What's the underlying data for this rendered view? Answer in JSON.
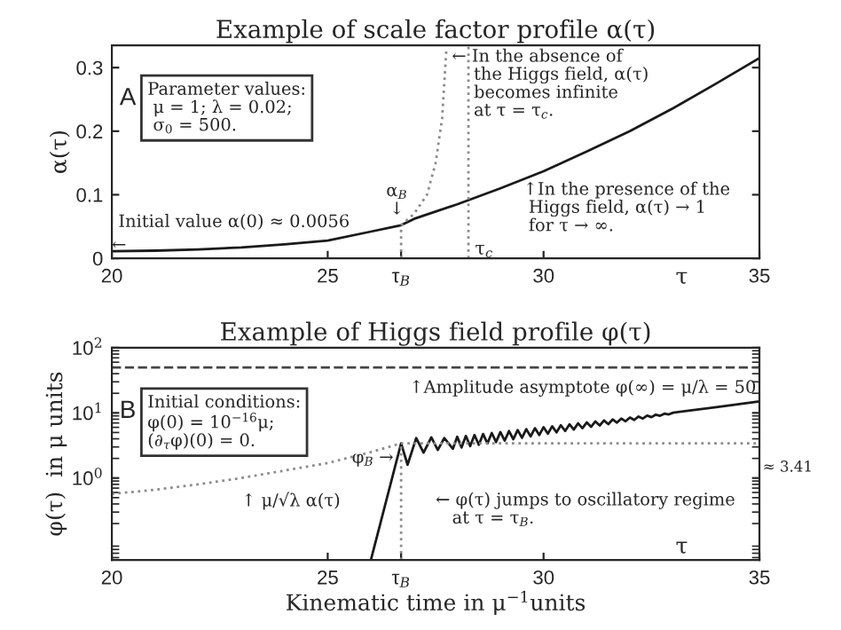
{
  "chart_data": [
    {
      "type": "line",
      "title": "Example of scale factor profile α(τ)",
      "ylabel": "α(τ)",
      "xlim": [
        20,
        35
      ],
      "xticks": [
        20,
        25,
        {
          "value": 26.7,
          "label": "τ$_{B}$"
        },
        30,
        35
      ],
      "ylim": [
        0,
        0.335
      ],
      "yticks": [
        0,
        0.1,
        0.2,
        0.3
      ],
      "grid": false,
      "legend": false,
      "series": [
        {
          "color": "#1a1a1a",
          "line_style": "solid",
          "x": [
            20,
            21,
            22,
            23,
            24,
            25,
            26,
            26.7,
            27,
            28,
            29,
            30,
            31,
            32,
            33,
            34,
            35
          ],
          "values": [
            0.011,
            0.012,
            0.014,
            0.017,
            0.022,
            0.028,
            0.042,
            0.052,
            0.062,
            0.085,
            0.11,
            0.137,
            0.168,
            0.2,
            0.236,
            0.275,
            0.315
          ]
        },
        {
          "color": "#8c8c8c",
          "line_style": "dotted",
          "x": [
            26.7,
            27.0,
            27.3,
            27.5,
            27.65,
            27.75
          ],
          "values": [
            0.052,
            0.07,
            0.1,
            0.15,
            0.22,
            0.33
          ]
        },
        {
          "color": "#8c8c8c",
          "line_style": "dotted",
          "x": [
            26.7,
            26.7
          ],
          "values": [
            0,
            0.052
          ]
        }
      ],
      "ref_lines": [
        {
          "axis": "x",
          "value": 28.26,
          "label": "τ$_{c}$",
          "color": "#8c8c8c",
          "line_style": "dotted"
        }
      ],
      "annotations": [
        "A",
        "Parameter values:\n μ = 1; λ = 0.02;\n σ$_{0}$ = 500.",
        "← In the absence of\n    the Higgs field, α(τ)\n    becomes infinite\n    at τ = τ$_{c}$.",
        "↑In the presence of the\n Higgs field, α(τ) → 1\n for τ → ∞.",
        "Initial value α(0) ≈ 0.0056",
        "←",
        "α$_{B}$\n↓",
        "τ"
      ]
    },
    {
      "type": "line",
      "title": "Example of Higgs field profile φ(τ)",
      "ylabel": "φ(τ)  in μ units",
      "xlabel": "Kinematic time in μ$^{−1}$units",
      "log": "y",
      "xlim": [
        20,
        35
      ],
      "xticks": [
        20,
        25,
        {
          "value": 26.7,
          "label": "τ$_{B}$"
        },
        30,
        35
      ],
      "ylim": [
        0.055,
        100
      ],
      "yticks": [
        {
          "value": 1,
          "label": "10$^{0}$"
        },
        {
          "value": 10,
          "label": "10$^{1}$"
        },
        {
          "value": 100,
          "label": "10$^{2}$"
        }
      ],
      "grid": false,
      "legend": false,
      "series": [
        {
          "color": "#1a1a1a",
          "line_style": "solid",
          "x": [
            26.0,
            26.7,
            26.85,
            27.05,
            27.22,
            27.4,
            27.55,
            27.7,
            27.9,
            28.0,
            28.1,
            28.2,
            28.3,
            28.4,
            28.5,
            28.6,
            28.7,
            28.8,
            28.9,
            29.0,
            29.1,
            29.2,
            29.3,
            29.4,
            29.5,
            29.6,
            29.7,
            29.8,
            29.9,
            30.0,
            30.1,
            30.2,
            30.3,
            30.4,
            30.5,
            30.6,
            30.7,
            30.8,
            30.9,
            31.0,
            31.1,
            31.2,
            31.3,
            31.4,
            31.5,
            31.6,
            31.7,
            31.8,
            31.9,
            32.0,
            32.1,
            32.2,
            32.3,
            32.4,
            32.5,
            32.6,
            32.7,
            32.8,
            32.9,
            33.0,
            34.0,
            35.0
          ],
          "values": [
            0.055,
            3.41,
            1.6,
            4.1,
            2.45,
            4.2,
            2.7,
            4.1,
            2.81,
            4.29,
            2.94,
            4.43,
            3.09,
            4.58,
            3.24,
            4.74,
            3.4,
            4.91,
            3.57,
            5.08,
            3.76,
            5.26,
            3.94,
            5.45,
            4.14,
            5.64,
            4.35,
            5.82,
            4.56,
            6.03,
            4.79,
            6.24,
            5.02,
            6.46,
            5.28,
            6.68,
            5.55,
            6.92,
            5.82,
            7.14,
            6.11,
            7.4,
            6.41,
            7.66,
            6.73,
            7.93,
            7.08,
            8.2,
            7.43,
            8.49,
            7.8,
            8.79,
            8.18,
            9.08,
            8.59,
            9.4,
            9.02,
            9.72,
            9.48,
            10.07,
            12.2,
            15.0
          ]
        },
        {
          "color": "#8c8c8c",
          "line_style": "dotted",
          "x": [
            20,
            21,
            22,
            23,
            24,
            25,
            26,
            26.7,
            35
          ],
          "values": [
            0.57,
            0.66,
            0.8,
            1.0,
            1.3,
            1.7,
            2.5,
            3.41,
            3.41
          ]
        },
        {
          "color": "#8c8c8c",
          "line_style": "dotted",
          "x": [
            26.7,
            26.7
          ],
          "values": [
            0.055,
            3.41
          ]
        }
      ],
      "ref_lines": [
        {
          "axis": "y",
          "value": 50,
          "color": "#444444",
          "line_style": "dashed"
        }
      ],
      "annotations": [
        "B",
        "Initial conditions:\nφ(0) = 10$^{−16}$μ;\n(∂$_{τ}$φ)(0) = 0.",
        "↑Amplitude asymptote φ(∞) = μ/λ = 50",
        "φ$_{B}$ →",
        "≈ 3.41",
        "↑ μ/√λ α(τ)",
        "← φ(τ) jumps to oscillatory regime\n   at τ = τ$_{B}$.",
        "τ"
      ]
    }
  ]
}
